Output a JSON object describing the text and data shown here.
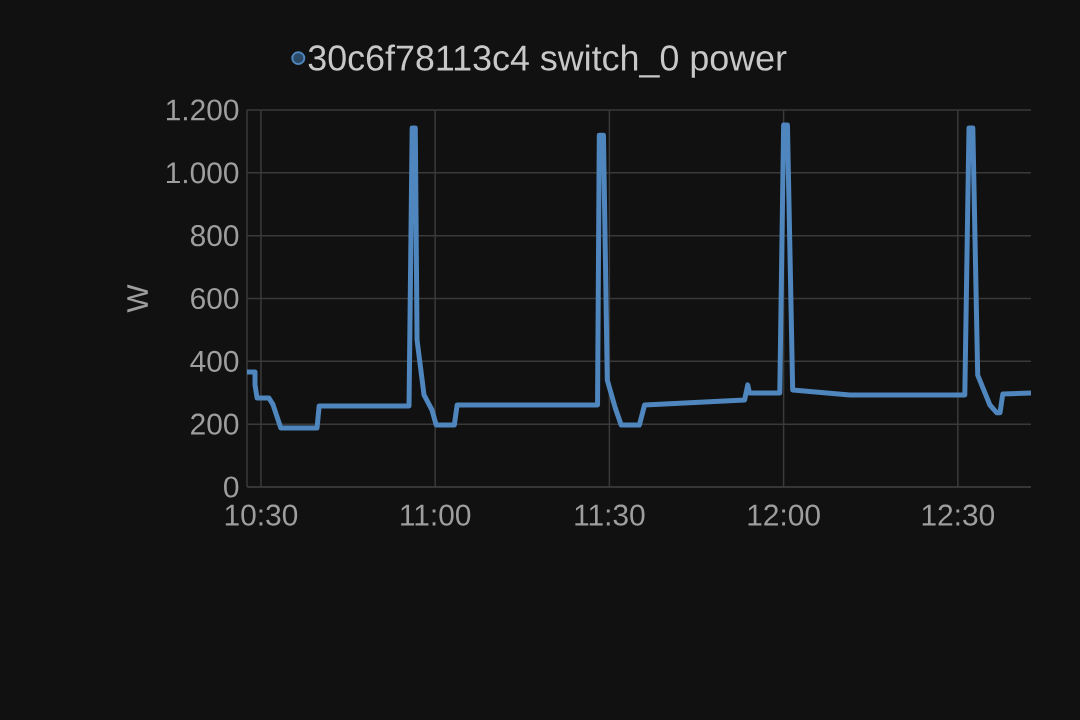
{
  "chart_data": {
    "type": "line",
    "ylabel": "W",
    "xlim": [
      10.46,
      12.71
    ],
    "xticks": [
      {
        "value": 10.5,
        "label": "10:30"
      },
      {
        "value": 11,
        "label": "11:00"
      },
      {
        "value": 11.5,
        "label": "11:30"
      },
      {
        "value": 12,
        "label": "12:00"
      },
      {
        "value": 12.5,
        "label": "12:30"
      }
    ],
    "ylim": [
      0,
      1200
    ],
    "yticks": [
      0,
      200,
      400,
      600,
      800,
      {
        "value": 1000,
        "label": "1.000"
      },
      {
        "value": 1200,
        "label": "1.200"
      }
    ],
    "grid": true,
    "legend": "top",
    "marker": "none",
    "line_style": "solid",
    "series": [
      {
        "name": "30c6f78113c4 switch_0 power",
        "color": "#4f86bd",
        "x": [
          10.46,
          10.483,
          10.483,
          10.489,
          10.523,
          10.534,
          10.557,
          10.661,
          10.667,
          10.925,
          10.934,
          10.943,
          10.948,
          10.968,
          10.991,
          11.003,
          11.055,
          11.063,
          11.466,
          11.471,
          11.483,
          11.494,
          11.517,
          11.534,
          11.586,
          11.601,
          11.888,
          11.897,
          11.902,
          11.989,
          12.0,
          12.011,
          12.026,
          12.19,
          12.52,
          12.532,
          12.543,
          12.557,
          12.592,
          12.612,
          12.621,
          12.629,
          12.71
        ],
        "values": [
          366,
          366,
          325,
          283,
          283,
          264,
          188,
          188,
          258,
          258,
          1143,
          1143,
          468,
          293,
          245,
          197,
          197,
          261,
          261,
          1120,
          1120,
          340,
          251,
          197,
          197,
          261,
          277,
          325,
          299,
          299,
          1152,
          1152,
          309,
          293,
          293,
          1143,
          1143,
          356,
          261,
          236,
          236,
          296,
          299
        ]
      }
    ]
  }
}
